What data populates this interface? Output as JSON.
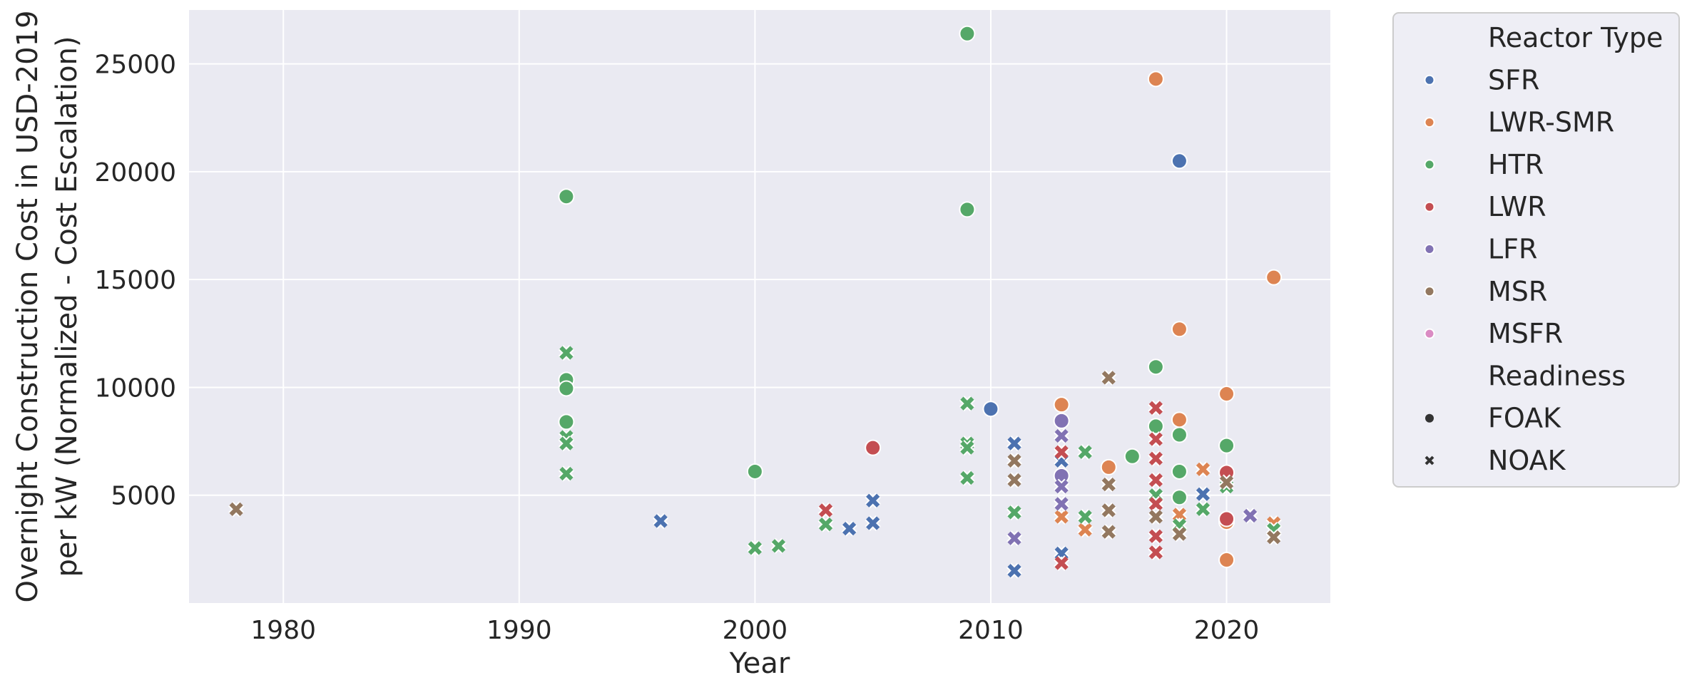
{
  "chart_data": {
    "type": "scatter",
    "xlabel": "Year",
    "ylabel_lines": [
      "Overnight Construction Cost in USD-2019",
      "per kW (Normalized - Cost Escalation)"
    ],
    "xlim": [
      1976,
      2024.4
    ],
    "ylim": [
      0,
      27500
    ],
    "x_ticks": [
      1980,
      1990,
      2000,
      2010,
      2020
    ],
    "y_ticks": [
      5000,
      10000,
      15000,
      20000,
      25000
    ],
    "grid": true,
    "legend_position": "outside-right",
    "legend": {
      "hue_title": "Reactor Type",
      "style_title": "Readiness",
      "markers": [
        {
          "name": "FOAK",
          "marker": "circle"
        },
        {
          "name": "NOAK",
          "marker": "x"
        }
      ]
    },
    "series": [
      {
        "name": "SFR",
        "color": "#4c72b0",
        "points": [
          {
            "x": 2010,
            "y": 9000,
            "readiness": "FOAK"
          },
          {
            "x": 2018,
            "y": 20500,
            "readiness": "FOAK"
          },
          {
            "x": 1996,
            "y": 3800,
            "readiness": "NOAK"
          },
          {
            "x": 2004,
            "y": 3450,
            "readiness": "NOAK"
          },
          {
            "x": 2005,
            "y": 4750,
            "readiness": "NOAK"
          },
          {
            "x": 2005,
            "y": 3700,
            "readiness": "NOAK"
          },
          {
            "x": 2011,
            "y": 7400,
            "readiness": "NOAK"
          },
          {
            "x": 2011,
            "y": 1500,
            "readiness": "NOAK"
          },
          {
            "x": 2013,
            "y": 6600,
            "readiness": "NOAK"
          },
          {
            "x": 2013,
            "y": 2300,
            "readiness": "NOAK"
          },
          {
            "x": 2019,
            "y": 5050,
            "readiness": "NOAK"
          }
        ]
      },
      {
        "name": "LWR-SMR",
        "color": "#dd8452",
        "points": [
          {
            "x": 2017,
            "y": 24300,
            "readiness": "FOAK"
          },
          {
            "x": 2022,
            "y": 15100,
            "readiness": "FOAK"
          },
          {
            "x": 2018,
            "y": 12700,
            "readiness": "FOAK"
          },
          {
            "x": 2020,
            "y": 9700,
            "readiness": "FOAK"
          },
          {
            "x": 2013,
            "y": 9200,
            "readiness": "FOAK"
          },
          {
            "x": 2018,
            "y": 8500,
            "readiness": "FOAK"
          },
          {
            "x": 2015,
            "y": 6300,
            "readiness": "FOAK"
          },
          {
            "x": 2020,
            "y": 3750,
            "readiness": "FOAK"
          },
          {
            "x": 2020,
            "y": 2000,
            "readiness": "FOAK"
          },
          {
            "x": 2013,
            "y": 4000,
            "readiness": "NOAK"
          },
          {
            "x": 2014,
            "y": 3400,
            "readiness": "NOAK"
          },
          {
            "x": 2018,
            "y": 4100,
            "readiness": "NOAK"
          },
          {
            "x": 2019,
            "y": 6200,
            "readiness": "NOAK"
          },
          {
            "x": 2022,
            "y": 3700,
            "readiness": "NOAK"
          }
        ]
      },
      {
        "name": "HTR",
        "color": "#55a868",
        "points": [
          {
            "x": 2009,
            "y": 26400,
            "readiness": "FOAK"
          },
          {
            "x": 1992,
            "y": 18850,
            "readiness": "FOAK"
          },
          {
            "x": 2009,
            "y": 18250,
            "readiness": "FOAK"
          },
          {
            "x": 2017,
            "y": 10950,
            "readiness": "FOAK"
          },
          {
            "x": 1992,
            "y": 10350,
            "readiness": "FOAK"
          },
          {
            "x": 1992,
            "y": 9950,
            "readiness": "FOAK"
          },
          {
            "x": 1992,
            "y": 8400,
            "readiness": "FOAK"
          },
          {
            "x": 2017,
            "y": 8200,
            "readiness": "FOAK"
          },
          {
            "x": 2018,
            "y": 7800,
            "readiness": "FOAK"
          },
          {
            "x": 2020,
            "y": 7300,
            "readiness": "FOAK"
          },
          {
            "x": 2016,
            "y": 6800,
            "readiness": "FOAK"
          },
          {
            "x": 2000,
            "y": 6100,
            "readiness": "FOAK"
          },
          {
            "x": 2018,
            "y": 6100,
            "readiness": "FOAK"
          },
          {
            "x": 2018,
            "y": 4900,
            "readiness": "FOAK"
          },
          {
            "x": 1992,
            "y": 11600,
            "readiness": "NOAK"
          },
          {
            "x": 1992,
            "y": 7700,
            "readiness": "NOAK"
          },
          {
            "x": 1992,
            "y": 7400,
            "readiness": "NOAK"
          },
          {
            "x": 1992,
            "y": 6000,
            "readiness": "NOAK"
          },
          {
            "x": 2000,
            "y": 2550,
            "readiness": "NOAK"
          },
          {
            "x": 2001,
            "y": 2650,
            "readiness": "NOAK"
          },
          {
            "x": 2003,
            "y": 3650,
            "readiness": "NOAK"
          },
          {
            "x": 2009,
            "y": 9250,
            "readiness": "NOAK"
          },
          {
            "x": 2009,
            "y": 7400,
            "readiness": "NOAK"
          },
          {
            "x": 2009,
            "y": 7200,
            "readiness": "NOAK"
          },
          {
            "x": 2009,
            "y": 5800,
            "readiness": "NOAK"
          },
          {
            "x": 2011,
            "y": 4200,
            "readiness": "NOAK"
          },
          {
            "x": 2014,
            "y": 7000,
            "readiness": "NOAK"
          },
          {
            "x": 2014,
            "y": 4000,
            "readiness": "NOAK"
          },
          {
            "x": 2017,
            "y": 5000,
            "readiness": "NOAK"
          },
          {
            "x": 2018,
            "y": 3600,
            "readiness": "NOAK"
          },
          {
            "x": 2019,
            "y": 4350,
            "readiness": "NOAK"
          },
          {
            "x": 2020,
            "y": 5400,
            "readiness": "NOAK"
          },
          {
            "x": 2022,
            "y": 3400,
            "readiness": "NOAK"
          }
        ]
      },
      {
        "name": "LWR",
        "color": "#c44e52",
        "points": [
          {
            "x": 2005,
            "y": 7200,
            "readiness": "FOAK"
          },
          {
            "x": 2020,
            "y": 6050,
            "readiness": "FOAK"
          },
          {
            "x": 2020,
            "y": 3900,
            "readiness": "FOAK"
          },
          {
            "x": 2003,
            "y": 4300,
            "readiness": "NOAK"
          },
          {
            "x": 2013,
            "y": 7000,
            "readiness": "NOAK"
          },
          {
            "x": 2013,
            "y": 1850,
            "readiness": "NOAK"
          },
          {
            "x": 2017,
            "y": 9050,
            "readiness": "NOAK"
          },
          {
            "x": 2017,
            "y": 7600,
            "readiness": "NOAK"
          },
          {
            "x": 2017,
            "y": 6700,
            "readiness": "NOAK"
          },
          {
            "x": 2017,
            "y": 5700,
            "readiness": "NOAK"
          },
          {
            "x": 2017,
            "y": 4600,
            "readiness": "NOAK"
          },
          {
            "x": 2017,
            "y": 3100,
            "readiness": "NOAK"
          },
          {
            "x": 2017,
            "y": 2350,
            "readiness": "NOAK"
          }
        ]
      },
      {
        "name": "LFR",
        "color": "#8172b3",
        "points": [
          {
            "x": 2013,
            "y": 8450,
            "readiness": "FOAK"
          },
          {
            "x": 2013,
            "y": 5900,
            "readiness": "FOAK"
          },
          {
            "x": 2011,
            "y": 3000,
            "readiness": "NOAK"
          },
          {
            "x": 2013,
            "y": 7750,
            "readiness": "NOAK"
          },
          {
            "x": 2013,
            "y": 5400,
            "readiness": "NOAK"
          },
          {
            "x": 2013,
            "y": 4600,
            "readiness": "NOAK"
          },
          {
            "x": 2021,
            "y": 4050,
            "readiness": "NOAK"
          }
        ]
      },
      {
        "name": "MSR",
        "color": "#937860",
        "points": [
          {
            "x": 1978,
            "y": 4350,
            "readiness": "NOAK"
          },
          {
            "x": 2011,
            "y": 6600,
            "readiness": "NOAK"
          },
          {
            "x": 2011,
            "y": 5700,
            "readiness": "NOAK"
          },
          {
            "x": 2015,
            "y": 10450,
            "readiness": "NOAK"
          },
          {
            "x": 2015,
            "y": 5500,
            "readiness": "NOAK"
          },
          {
            "x": 2015,
            "y": 4300,
            "readiness": "NOAK"
          },
          {
            "x": 2015,
            "y": 3300,
            "readiness": "NOAK"
          },
          {
            "x": 2017,
            "y": 4000,
            "readiness": "NOAK"
          },
          {
            "x": 2018,
            "y": 3200,
            "readiness": "NOAK"
          },
          {
            "x": 2020,
            "y": 5600,
            "readiness": "NOAK"
          },
          {
            "x": 2022,
            "y": 3050,
            "readiness": "NOAK"
          }
        ]
      },
      {
        "name": "MSFR",
        "color": "#da8bc3",
        "points": []
      }
    ]
  }
}
